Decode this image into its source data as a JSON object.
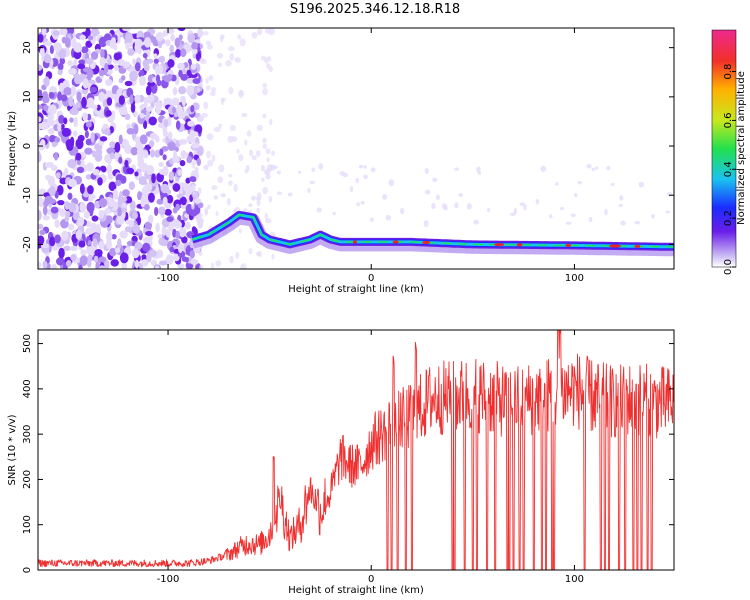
{
  "title": "S196.2025.346.12.18.R18",
  "colors": {
    "snr_line": "#f03030",
    "tri_blob": "#6a1ee8",
    "tri_core": "#19c3f0",
    "tri_peak": "#e8262a"
  },
  "chart_data": [
    {
      "type": "heatmap",
      "xlabel": "Height of straight line (km)",
      "ylabel": "Frequency (Hz)",
      "xlim": [
        -164,
        149
      ],
      "ylim": [
        -25,
        24
      ],
      "xticks": [
        -100,
        0,
        100
      ],
      "yticks": [
        -20,
        -10,
        0,
        10,
        20
      ],
      "colorbar": {
        "label": "Normalized spectral amplitude",
        "range": [
          0.0,
          0.97
        ],
        "ticks": [
          0.0,
          0.2,
          0.4,
          0.6,
          0.8
        ],
        "colormap": "rainbow (white → purple → blue → cyan → green → yellow → orange → red → magenta)"
      },
      "noise_region_x": [
        -164,
        -88
      ],
      "tremor_band": {
        "x": [
          -88,
          -80,
          -70,
          -65,
          -58,
          -54,
          -50,
          -40,
          -30,
          -25,
          -20,
          -15,
          -10,
          0,
          20,
          50,
          100,
          149
        ],
        "frequency": [
          -19,
          -18,
          -15.5,
          -14,
          -14.5,
          -18,
          -19,
          -20,
          -19,
          -18,
          -19,
          -19.5,
          -19.5,
          -19.5,
          -19.5,
          -20,
          -20.2,
          -20.5
        ]
      }
    },
    {
      "type": "line",
      "xlabel": "Height of straight line (km)",
      "ylabel": "SNR (10 * v/v)",
      "xlim": [
        -164,
        149
      ],
      "ylim": [
        0,
        530
      ],
      "xticks": [
        -100,
        0,
        100
      ],
      "yticks": [
        0,
        100,
        200,
        300,
        400,
        500
      ],
      "series": [
        {
          "x": [
            -164,
            -150,
            -130,
            -110,
            -90,
            -80,
            -70,
            -65,
            -60,
            -55,
            -50,
            -45,
            -40,
            -35,
            -30,
            -25,
            -20,
            -15,
            -10,
            -5,
            0,
            5,
            10,
            15,
            20,
            25,
            30,
            40,
            50,
            60,
            70,
            80,
            90,
            100,
            110,
            120,
            130,
            140,
            149
          ],
          "values": [
            15,
            15,
            15,
            15,
            15,
            20,
            35,
            50,
            60,
            55,
            80,
            160,
            70,
            100,
            180,
            130,
            170,
            250,
            230,
            230,
            280,
            300,
            320,
            330,
            340,
            360,
            380,
            380,
            390,
            380,
            370,
            380,
            390,
            400,
            380,
            370,
            380,
            370,
            370
          ]
        }
      ],
      "spikes_up_x": [
        -48,
        11,
        22,
        92,
        93
      ],
      "dropouts_x": [
        8,
        10,
        13,
        17,
        20,
        40,
        41,
        46,
        50,
        52,
        57,
        61,
        67,
        68,
        70,
        73,
        75,
        80,
        84,
        86,
        89,
        90,
        105,
        113,
        115,
        117,
        122,
        125,
        129,
        131,
        133,
        136,
        138
      ]
    }
  ]
}
